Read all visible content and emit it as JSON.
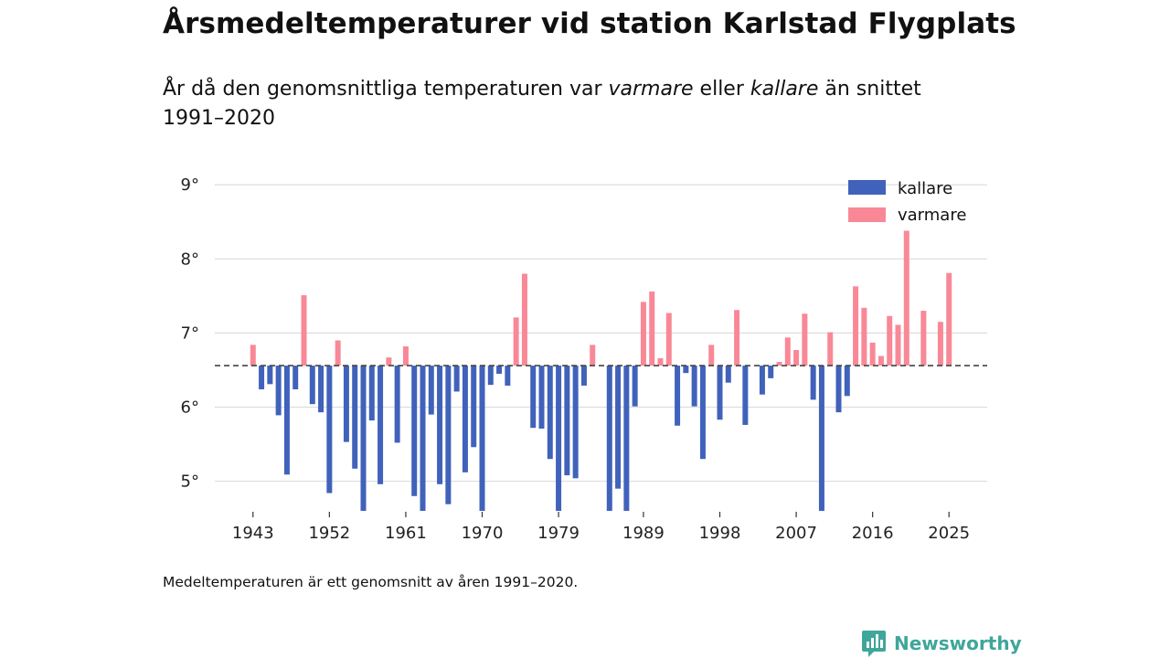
{
  "title": "Årsmedeltemperaturer vid station Karlstad Flygplats",
  "subtitle": {
    "part1": "År då den genomsnittliga temperaturen var ",
    "warmer_word": "varmare",
    "part2": " eller ",
    "colder_word": "kallare",
    "part3": " än snittet 1991–2020"
  },
  "footnote": "Medeltemperaturen är ett genomsnitt av åren 1991–2020.",
  "brand": {
    "name": "Newsworthy",
    "icon": "newsworthy-bar-chart-icon",
    "color": "#3fa69a"
  },
  "colors": {
    "colder": "#4062bb",
    "warmer": "#f98897",
    "grid": "#dddddd",
    "baseline": "#444444"
  },
  "chart_data": {
    "type": "bar",
    "title": "Årsmedeltemperaturer vid station Karlstad Flygplats",
    "baseline": 6.56,
    "ylim": [
      4.6,
      9.2
    ],
    "yticks": [
      5,
      6,
      7,
      8,
      9
    ],
    "ytick_labels": [
      "5°",
      "6°",
      "7°",
      "8°",
      "9°"
    ],
    "xlim": [
      1938.5,
      2029.5
    ],
    "xticks": [
      1943,
      1952,
      1961,
      1970,
      1979,
      1989,
      1998,
      2007,
      2016,
      2025
    ],
    "xtick_labels": [
      "1943",
      "1952",
      "1961",
      "1970",
      "1979",
      "1989",
      "1998",
      "2007",
      "2016",
      "2025"
    ],
    "legend": [
      {
        "key": "colder",
        "label": "kallare"
      },
      {
        "key": "warmer",
        "label": "varmare"
      }
    ],
    "legend_position": "top-right",
    "years": [
      1943,
      1944,
      1945,
      1946,
      1947,
      1948,
      1949,
      1950,
      1951,
      1952,
      1953,
      1954,
      1955,
      1956,
      1957,
      1958,
      1959,
      1960,
      1961,
      1962,
      1963,
      1964,
      1965,
      1966,
      1967,
      1968,
      1969,
      1970,
      1971,
      1972,
      1973,
      1974,
      1975,
      1976,
      1977,
      1978,
      1979,
      1980,
      1981,
      1982,
      1983,
      1985,
      1986,
      1987,
      1988,
      1989,
      1990,
      1991,
      1992,
      1993,
      1994,
      1995,
      1996,
      1997,
      1998,
      1999,
      2000,
      2001,
      2003,
      2004,
      2005,
      2006,
      2007,
      2008,
      2009,
      2010,
      2011,
      2012,
      2013,
      2014,
      2015,
      2016,
      2017,
      2018,
      2019,
      2020,
      2022,
      2024,
      2025
    ],
    "values": [
      6.84,
      6.24,
      6.31,
      5.89,
      5.09,
      6.24,
      7.51,
      6.04,
      5.93,
      4.84,
      6.9,
      5.53,
      5.17,
      4.58,
      5.82,
      4.96,
      6.67,
      5.52,
      6.82,
      4.8,
      4.58,
      5.9,
      4.96,
      4.69,
      6.21,
      5.12,
      5.46,
      4.58,
      6.3,
      6.45,
      6.29,
      7.21,
      7.8,
      5.72,
      5.71,
      5.3,
      4.58,
      5.08,
      5.04,
      6.29,
      6.84,
      4.58,
      4.9,
      4.58,
      6.01,
      7.42,
      7.56,
      6.66,
      7.27,
      5.75,
      6.46,
      6.01,
      5.3,
      6.84,
      5.83,
      6.33,
      7.31,
      5.76,
      6.17,
      6.39,
      6.61,
      6.94,
      6.77,
      7.26,
      6.1,
      4.58,
      7.01,
      5.93,
      6.15,
      7.63,
      7.34,
      6.87,
      6.69,
      7.23,
      7.11,
      8.38,
      7.3,
      7.15,
      7.81
    ]
  }
}
